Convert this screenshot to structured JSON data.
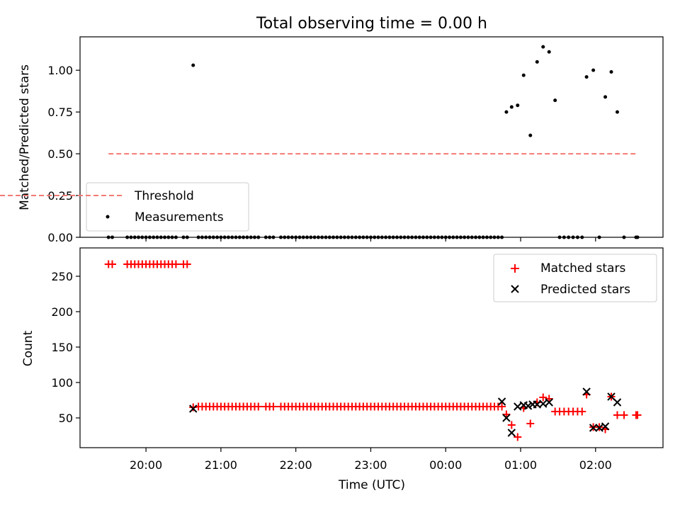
{
  "title": "Total observing time = 0.00 h",
  "chart_data": [
    {
      "type": "scatter",
      "ylabel": "Matched/Predicted stars",
      "xlim_hours": [
        19.12,
        26.9
      ],
      "ylim": [
        0,
        1.2
      ],
      "yticks": [
        "0.00",
        "0.25",
        "0.50",
        "0.75",
        "1.00"
      ],
      "legend_position": "lower-left",
      "legend": {
        "threshold": "Threshold",
        "measurements": "Measurements"
      },
      "threshold": {
        "value": 0.5,
        "x_range_hours": [
          19.5,
          26.56
        ],
        "color": "#f47a74"
      },
      "measurements": {
        "color": "#000000",
        "x_hours": [
          19.5,
          19.55,
          19.75,
          19.8,
          19.85,
          19.9,
          19.95,
          20.0,
          20.05,
          20.1,
          20.15,
          20.2,
          20.25,
          20.3,
          20.35,
          20.4,
          20.5,
          20.55,
          20.63,
          20.7,
          20.75,
          20.8,
          20.85,
          20.9,
          20.95,
          21.0,
          21.05,
          21.1,
          21.15,
          21.2,
          21.25,
          21.3,
          21.35,
          21.4,
          21.45,
          21.5,
          21.6,
          21.65,
          21.7,
          21.8,
          21.85,
          21.9,
          21.95,
          22.0,
          22.05,
          22.1,
          22.15,
          22.2,
          22.25,
          22.3,
          22.35,
          22.4,
          22.45,
          22.5,
          22.55,
          22.6,
          22.65,
          22.7,
          22.75,
          22.8,
          22.85,
          22.9,
          22.95,
          23.0,
          23.05,
          23.1,
          23.15,
          23.2,
          23.25,
          23.3,
          23.35,
          23.4,
          23.45,
          23.5,
          23.55,
          23.6,
          23.65,
          23.7,
          23.75,
          23.8,
          23.85,
          23.9,
          23.95,
          24.0,
          24.05,
          24.1,
          24.15,
          24.2,
          24.25,
          24.3,
          24.35,
          24.4,
          24.45,
          24.5,
          24.55,
          24.6,
          24.65,
          24.7,
          24.75,
          24.81,
          24.88,
          24.96,
          25.04,
          25.13,
          25.22,
          25.3,
          25.38,
          25.46,
          25.52,
          25.58,
          25.64,
          25.7,
          25.76,
          25.82,
          25.88,
          25.97,
          26.05,
          26.13,
          26.21,
          26.29,
          26.38,
          26.54,
          26.56
        ],
        "y": [
          0,
          0,
          0,
          0,
          0,
          0,
          0,
          0,
          0,
          0,
          0,
          0,
          0,
          0,
          0,
          0,
          0,
          0,
          1.03,
          0,
          0,
          0,
          0,
          0,
          0,
          0,
          0,
          0,
          0,
          0,
          0,
          0,
          0,
          0,
          0,
          0,
          0,
          0,
          0,
          0,
          0,
          0,
          0,
          0,
          0,
          0,
          0,
          0,
          0,
          0,
          0,
          0,
          0,
          0,
          0,
          0,
          0,
          0,
          0,
          0,
          0,
          0,
          0,
          0,
          0,
          0,
          0,
          0,
          0,
          0,
          0,
          0,
          0,
          0,
          0,
          0,
          0,
          0,
          0,
          0,
          0,
          0,
          0,
          0,
          0,
          0,
          0,
          0,
          0,
          0,
          0,
          0,
          0,
          0,
          0,
          0,
          0,
          0,
          0,
          0.75,
          0.78,
          0.79,
          0.97,
          0.61,
          1.05,
          1.14,
          1.11,
          0.82,
          0,
          0,
          0,
          0,
          0,
          0,
          0.96,
          1.0,
          0,
          0.84,
          0.99,
          0.75,
          0,
          0,
          0
        ]
      }
    },
    {
      "type": "scatter",
      "ylabel": "Count",
      "xlabel": "Time (UTC)",
      "xlim_hours": [
        19.12,
        26.9
      ],
      "ylim": [
        8,
        290
      ],
      "yticks": [
        "50",
        "100",
        "150",
        "200",
        "250"
      ],
      "xticks_hours": [
        20,
        21,
        22,
        23,
        24,
        25,
        26
      ],
      "xtick_labels": [
        "20:00",
        "21:00",
        "22:00",
        "23:00",
        "00:00",
        "01:00",
        "02:00"
      ],
      "legend_position": "upper-right",
      "legend": {
        "matched": "Matched stars",
        "predicted": "Predicted stars"
      },
      "matched": {
        "color": "#ff0000",
        "x_hours": [
          19.5,
          19.55,
          19.75,
          19.8,
          19.85,
          19.9,
          19.95,
          20.0,
          20.05,
          20.1,
          20.15,
          20.2,
          20.25,
          20.3,
          20.35,
          20.4,
          20.5,
          20.55,
          20.63,
          20.7,
          20.75,
          20.8,
          20.85,
          20.9,
          20.95,
          21.0,
          21.05,
          21.1,
          21.15,
          21.2,
          21.25,
          21.3,
          21.35,
          21.4,
          21.45,
          21.5,
          21.6,
          21.65,
          21.7,
          21.8,
          21.85,
          21.9,
          21.95,
          22.0,
          22.05,
          22.1,
          22.15,
          22.2,
          22.25,
          22.3,
          22.35,
          22.4,
          22.45,
          22.5,
          22.55,
          22.6,
          22.65,
          22.7,
          22.75,
          22.8,
          22.85,
          22.9,
          22.95,
          23.0,
          23.05,
          23.1,
          23.15,
          23.2,
          23.25,
          23.3,
          23.35,
          23.4,
          23.45,
          23.5,
          23.55,
          23.6,
          23.65,
          23.7,
          23.75,
          23.8,
          23.85,
          23.9,
          23.95,
          24.0,
          24.05,
          24.1,
          24.15,
          24.2,
          24.25,
          24.3,
          24.35,
          24.4,
          24.45,
          24.5,
          24.55,
          24.6,
          24.65,
          24.7,
          24.75,
          24.81,
          24.88,
          24.96,
          25.04,
          25.13,
          25.22,
          25.3,
          25.38,
          25.46,
          25.52,
          25.58,
          25.64,
          25.7,
          25.76,
          25.82,
          25.88,
          25.97,
          26.05,
          26.13,
          26.21,
          26.29,
          26.38,
          26.54,
          26.56
        ],
        "y": [
          267,
          267,
          267,
          267,
          267,
          267,
          267,
          267,
          267,
          267,
          267,
          267,
          267,
          267,
          267,
          267,
          267,
          267,
          65,
          66,
          66,
          66,
          66,
          66,
          66,
          66,
          66,
          66,
          66,
          66,
          66,
          66,
          66,
          66,
          66,
          66,
          66,
          66,
          66,
          66,
          66,
          66,
          66,
          66,
          66,
          66,
          66,
          66,
          66,
          66,
          66,
          66,
          66,
          66,
          66,
          66,
          66,
          66,
          66,
          66,
          66,
          66,
          66,
          66,
          66,
          66,
          66,
          66,
          66,
          66,
          66,
          66,
          66,
          66,
          66,
          66,
          66,
          66,
          66,
          66,
          66,
          66,
          66,
          66,
          66,
          66,
          66,
          66,
          66,
          66,
          66,
          66,
          66,
          66,
          66,
          66,
          66,
          66,
          66,
          55,
          40,
          23,
          64,
          42,
          72,
          79,
          77,
          59,
          59,
          59,
          59,
          59,
          59,
          59,
          83,
          37,
          37,
          34,
          80,
          54,
          54,
          54,
          54
        ]
      },
      "predicted": {
        "color": "#000000",
        "x_hours": [
          20.63,
          24.75,
          24.81,
          24.88,
          24.96,
          25.04,
          25.1,
          25.16,
          25.22,
          25.3,
          25.38,
          25.88,
          25.97,
          26.05,
          26.13,
          26.21,
          26.29
        ],
        "y": [
          63,
          73,
          50,
          29,
          66,
          68,
          67,
          69,
          69,
          70,
          72,
          87,
          36,
          36,
          38,
          80,
          72
        ]
      }
    }
  ]
}
